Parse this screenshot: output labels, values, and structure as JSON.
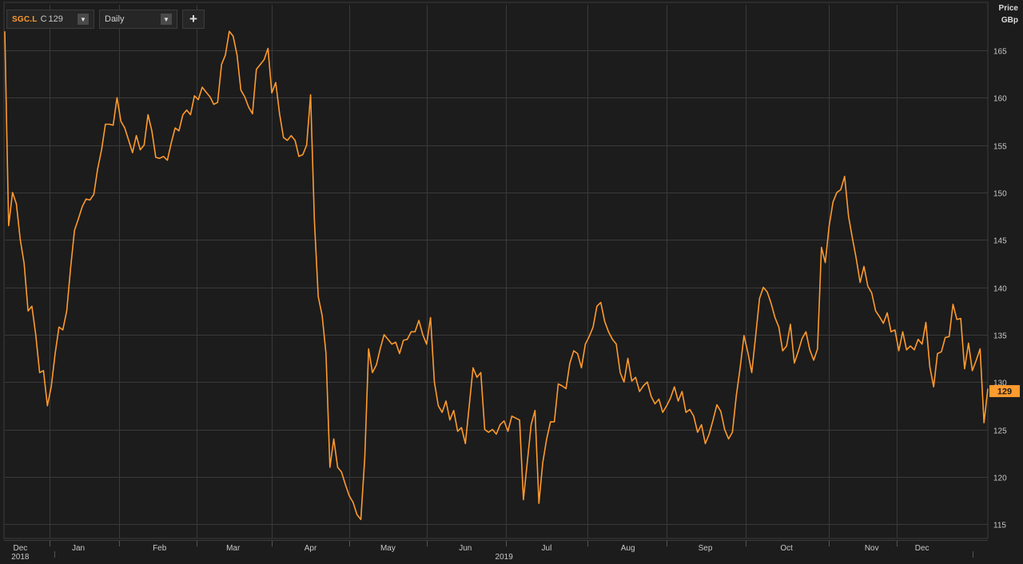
{
  "toolbar": {
    "symbol": "SGC.L",
    "close_label": "C",
    "close_value": "129",
    "interval": "Daily",
    "dropdown_arrow": "▼",
    "add_button": "+"
  },
  "colors": {
    "background": "#1c1c1c",
    "grid": "#3a3a3a",
    "line": "#ff9a2e",
    "text": "#c8c8c8"
  },
  "chart_data": {
    "type": "line",
    "series": [
      {
        "values": [
          167,
          146.5,
          150,
          148.8,
          145,
          142.5,
          137.5,
          138,
          135,
          131,
          131.2,
          127.5,
          129.5,
          133,
          135.8,
          135.5,
          137.5,
          142,
          146,
          147.2,
          148.5,
          149.3,
          149.2,
          149.8,
          152.5,
          154.5,
          157.2,
          157.2,
          157.1,
          160,
          157.5,
          156.8,
          155.5,
          154.2,
          156,
          154.5,
          155,
          158.2,
          156.5,
          153.7,
          153.6,
          153.8,
          153.4,
          155.2,
          156.8,
          156.5,
          158.2,
          158.7,
          158.2,
          160.2,
          159.8,
          161.1,
          160.6,
          160.1,
          159.3,
          159.5,
          163.5,
          164.5,
          167,
          166.5,
          164.5,
          160.8,
          160.1,
          159,
          158.3,
          163,
          163.5,
          164,
          165.2,
          160.5,
          161.6,
          158.3,
          155.8,
          155.5,
          156,
          155.5,
          153.8,
          154,
          155,
          160.3,
          147,
          139,
          137,
          133,
          121,
          124,
          121,
          120.5,
          119.2,
          118,
          117.3,
          116,
          115.5,
          122,
          133.5,
          131,
          131.8,
          133.5,
          135,
          134.5,
          134,
          134.2,
          133,
          134.4,
          134.5,
          135.3,
          135.3,
          136.5,
          135,
          134,
          136.8,
          130,
          127.5,
          126.8,
          128,
          126,
          127,
          124.8,
          125.2,
          123.5,
          127.5,
          131.5,
          130.5,
          131,
          125,
          124.7,
          125,
          124.5,
          125.5,
          125.9,
          124.8,
          126.4,
          126.2,
          126,
          117.6,
          121.5,
          125.5,
          127,
          117.2,
          121.5,
          124,
          125.8,
          125.8,
          129.8,
          129.6,
          129.3,
          132,
          133.3,
          133,
          131.5,
          134,
          134.8,
          135.8,
          138,
          138.4,
          136.4,
          135.3,
          134.5,
          134,
          131,
          130,
          132.5,
          130.1,
          130.5,
          129,
          129.6,
          130,
          128.5,
          127.7,
          128.2,
          126.8,
          127.5,
          128.3,
          129.5,
          128,
          129,
          126.8,
          127.1,
          126.4,
          124.7,
          125.5,
          123.5,
          124.5,
          126,
          127.6,
          126.9,
          125,
          124,
          124.7,
          128.5,
          131.5,
          134.9,
          133.1,
          131,
          134.8,
          138.8,
          140,
          139.5,
          138.3,
          136.8,
          135.8,
          133.3,
          133.8,
          136.1,
          132,
          133.2,
          134.6,
          135.3,
          133.4,
          132.3,
          133.5,
          144.2,
          142.6,
          146.5,
          149,
          150,
          150.3,
          151.7,
          147.5,
          145.2,
          143,
          140.5,
          142.2,
          140.1,
          139.4,
          137.5,
          136.9,
          136.2,
          137.3,
          135.3,
          135.5,
          133.3,
          135.3,
          133.4,
          133.8,
          133.4,
          134.5,
          134,
          136.3,
          131.6,
          129.5,
          133,
          133.2,
          134.7,
          134.8,
          138.2,
          136.6,
          136.7,
          131.4,
          134.1,
          131.2,
          132.3,
          133.5,
          125.7,
          129.3
        ]
      }
    ],
    "x_ticks": [
      "Dec",
      "Jan",
      "Feb",
      "Mar",
      "Apr",
      "May",
      "Jun",
      "Jul",
      "Aug",
      "Sep",
      "Oct",
      "Nov",
      "Dec"
    ],
    "x_tick_index": [
      4,
      19,
      40,
      59,
      79,
      99,
      119,
      140,
      161,
      181,
      202,
      224,
      237
    ],
    "year_labels": [
      {
        "label": "2018",
        "index": 4
      },
      {
        "label": "2019",
        "index": 129
      }
    ],
    "y_ticks": [
      115,
      120,
      125,
      130,
      135,
      140,
      145,
      150,
      155,
      160,
      165
    ],
    "ylim": [
      113.5,
      169.8
    ],
    "ylabel": "Price",
    "yunit": "GBp",
    "last_value": "129",
    "grid": true
  }
}
